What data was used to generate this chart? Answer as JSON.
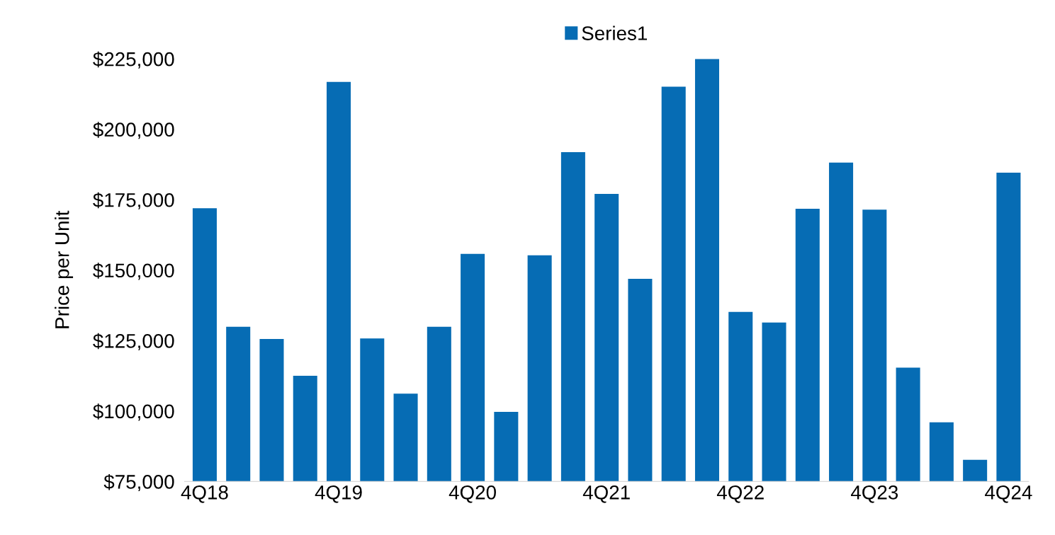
{
  "chart_data": {
    "type": "bar",
    "ylabel": "Price per Unit",
    "categories": [
      "4Q18",
      null,
      null,
      null,
      "4Q19",
      null,
      null,
      null,
      "4Q20",
      null,
      null,
      null,
      "4Q21",
      null,
      null,
      null,
      "4Q22",
      null,
      null,
      null,
      "4Q23",
      null,
      null,
      null,
      "4Q24"
    ],
    "series": [
      {
        "name": "Series1",
        "color": "#066cb4",
        "values": [
          172000,
          129900,
          125600,
          112500,
          216800,
          125800,
          106200,
          129900,
          155800,
          99700,
          155300,
          191900,
          177100,
          146900,
          215100,
          225000,
          135200,
          131400,
          171800,
          188200,
          171500,
          115400,
          96000,
          82700,
          184600
        ]
      }
    ],
    "ylim": [
      75000,
      225000
    ],
    "yticks": [
      {
        "value": 75000,
        "label": "$75,000"
      },
      {
        "value": 100000,
        "label": "$100,000"
      },
      {
        "value": 125000,
        "label": "$125,000"
      },
      {
        "value": 150000,
        "label": "$150,000"
      },
      {
        "value": 175000,
        "label": "$175,000"
      },
      {
        "value": 200000,
        "label": "$200,000"
      },
      {
        "value": 225000,
        "label": "$225,000"
      }
    ],
    "grid": false,
    "legend": "top"
  }
}
